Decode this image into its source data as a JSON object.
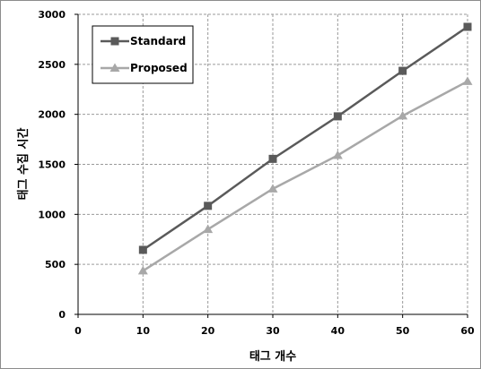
{
  "chart_data": {
    "type": "line",
    "title": "",
    "xlabel": "태그 개수",
    "ylabel": "태그 수집 시간",
    "x": [
      10,
      20,
      30,
      40,
      50,
      60
    ],
    "xlim": [
      0,
      60
    ],
    "ylim": [
      0,
      3000
    ],
    "xticks": [
      "0",
      "10",
      "20",
      "30",
      "40",
      "50",
      "60"
    ],
    "yticks": [
      "0",
      "500",
      "1000",
      "1500",
      "2000",
      "2500",
      "3000"
    ],
    "grid": true,
    "legend_position": "top-left",
    "series": [
      {
        "name": "Standard",
        "marker": "square",
        "color": "#5a5a5a",
        "values": [
          645,
          1085,
          1555,
          1980,
          2435,
          2875
        ]
      },
      {
        "name": "Proposed",
        "marker": "triangle",
        "color": "#a8a8a8",
        "values": [
          435,
          850,
          1255,
          1590,
          1985,
          2330
        ]
      }
    ]
  }
}
